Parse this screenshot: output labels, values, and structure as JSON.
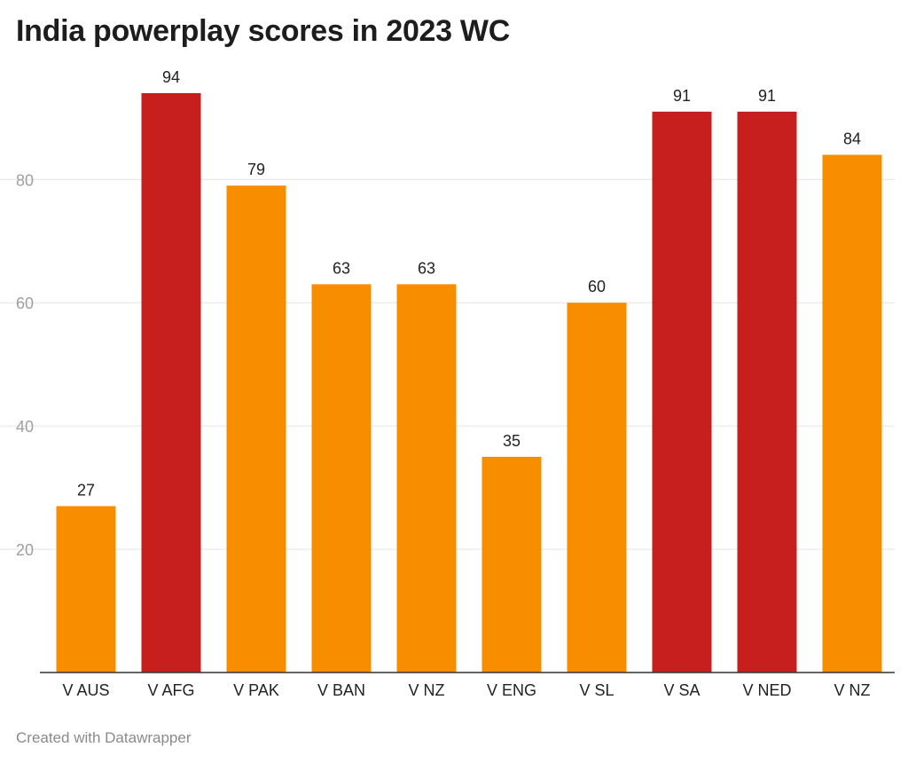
{
  "chart_data": {
    "type": "bar",
    "title": "India powerplay scores in 2023 WC",
    "categories": [
      "V AUS",
      "V AFG",
      "V PAK",
      "V BAN",
      "V NZ",
      "V ENG",
      "V SL",
      "V SA",
      "V NED",
      "V NZ"
    ],
    "values": [
      27,
      94,
      79,
      63,
      63,
      35,
      60,
      91,
      91,
      84
    ],
    "bar_colors": [
      "#f98d00",
      "#c71e1e",
      "#f98d00",
      "#f98d00",
      "#f98d00",
      "#f98d00",
      "#f98d00",
      "#c71e1e",
      "#c71e1e",
      "#f98d00"
    ],
    "y_ticks": [
      20,
      40,
      60,
      80
    ],
    "ylim": [
      0,
      94
    ],
    "grid": true,
    "xlabel": "",
    "ylabel": ""
  },
  "footer": {
    "credit": "Created with Datawrapper"
  }
}
